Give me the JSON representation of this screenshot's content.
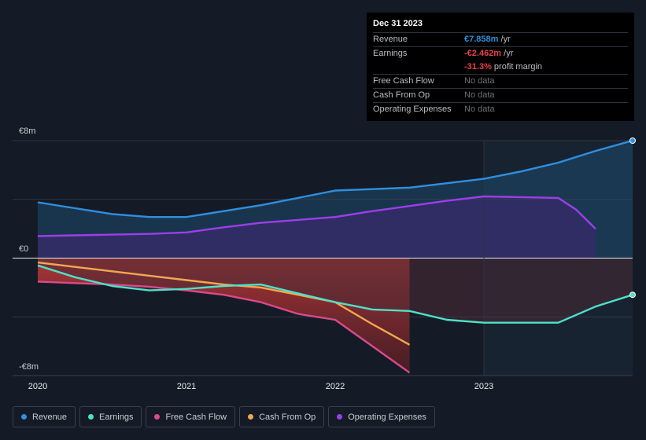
{
  "tooltip": {
    "date": "Dec 31 2023",
    "rows": [
      {
        "label": "Revenue",
        "value": "€7.858m",
        "unit": " /yr"
      },
      {
        "label": "Earnings",
        "value": "-€2.462m",
        "unit": " /yr"
      },
      {
        "label": "",
        "value": "-31.3%",
        "unit": " profit margin"
      },
      {
        "label": "Free Cash Flow",
        "value": "No data"
      },
      {
        "label": "Cash From Op",
        "value": "No data"
      },
      {
        "label": "Operating Expenses",
        "value": "No data"
      }
    ]
  },
  "chart_data": {
    "type": "area",
    "y_label_top": "€8m",
    "y_label_zero": "€0",
    "y_label_bottom": "-€8m",
    "ylim": [
      -8,
      8
    ],
    "xlim": [
      2020,
      2024
    ],
    "x_ticks": [
      {
        "value": 2020,
        "label": "2020"
      },
      {
        "value": 2021,
        "label": "2021"
      },
      {
        "value": 2022,
        "label": "2022"
      },
      {
        "value": 2023,
        "label": "2023"
      }
    ],
    "series": [
      {
        "name": "Revenue",
        "color": "#2f8fe0",
        "x": [
          2020.0,
          2020.25,
          2020.5,
          2020.75,
          2021.0,
          2021.25,
          2021.5,
          2021.75,
          2022.0,
          2022.25,
          2022.5,
          2022.75,
          2023.0,
          2023.25,
          2023.5,
          2023.75,
          2024.0
        ],
        "y": [
          3.8,
          3.4,
          3.0,
          2.8,
          2.8,
          3.2,
          3.6,
          4.1,
          4.6,
          4.7,
          4.8,
          5.1,
          5.4,
          5.9,
          6.5,
          7.3,
          8.0
        ]
      },
      {
        "name": "Operating Expenses",
        "color": "#9b3fe8",
        "x": [
          2020.0,
          2020.25,
          2020.5,
          2020.75,
          2021.0,
          2021.25,
          2021.5,
          2021.75,
          2022.0,
          2022.25,
          2022.5,
          2022.75,
          2023.0,
          2023.25,
          2023.5,
          2023.62,
          2023.75
        ],
        "y": [
          1.5,
          1.55,
          1.6,
          1.65,
          1.75,
          2.1,
          2.4,
          2.6,
          2.8,
          3.2,
          3.55,
          3.9,
          4.2,
          4.15,
          4.1,
          3.3,
          2.0
        ]
      },
      {
        "name": "Earnings",
        "color": "#4fe0c8",
        "x": [
          2020.0,
          2020.25,
          2020.5,
          2020.75,
          2021.0,
          2021.25,
          2021.5,
          2021.75,
          2022.0,
          2022.25,
          2022.5,
          2022.75,
          2023.0,
          2023.25,
          2023.5,
          2023.75,
          2024.0
        ],
        "y": [
          -0.5,
          -1.3,
          -1.9,
          -2.2,
          -2.1,
          -1.9,
          -1.8,
          -2.4,
          -3.0,
          -3.5,
          -3.6,
          -4.2,
          -4.4,
          -4.4,
          -4.4,
          -3.3,
          -2.5
        ]
      },
      {
        "name": "Free Cash Flow",
        "color": "#d94a8a",
        "x": [
          2020.0,
          2020.25,
          2020.5,
          2020.75,
          2021.0,
          2021.25,
          2021.5,
          2021.75,
          2022.0,
          2022.25,
          2022.5
        ],
        "y": [
          -1.6,
          -1.7,
          -1.8,
          -1.95,
          -2.2,
          -2.5,
          -3.0,
          -3.8,
          -4.2,
          -6.0,
          -7.8
        ]
      },
      {
        "name": "Cash From Op",
        "color": "#f0a850",
        "x": [
          2020.0,
          2020.25,
          2020.5,
          2020.75,
          2021.0,
          2021.25,
          2021.5,
          2021.75,
          2022.0,
          2022.25,
          2022.5
        ],
        "y": [
          -0.3,
          -0.6,
          -0.9,
          -1.2,
          -1.5,
          -1.8,
          -2.0,
          -2.5,
          -3.0,
          -4.5,
          -5.9
        ]
      }
    ]
  },
  "legend": [
    {
      "label": "Revenue",
      "color": "#2f8fe0"
    },
    {
      "label": "Earnings",
      "color": "#4fe0c8"
    },
    {
      "label": "Free Cash Flow",
      "color": "#d94a8a"
    },
    {
      "label": "Cash From Op",
      "color": "#f0a850"
    },
    {
      "label": "Operating Expenses",
      "color": "#9b3fe8"
    }
  ]
}
